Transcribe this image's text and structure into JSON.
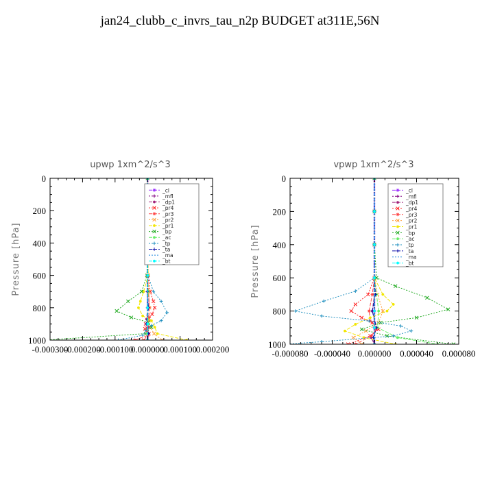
{
  "figure_title": "jan24_clubb_c_invrs_tau_n2p  BUDGET at311E,56N",
  "chart_data": [
    {
      "type": "line",
      "title": "upwp   1xm^2/s^3",
      "ylabel": "Pressure [hPa]",
      "xlabel": "",
      "xlim": [
        -0.0003,
        0.0002
      ],
      "ylim": [
        1000,
        0
      ],
      "y_reversed": true,
      "xtick_labels": [
        "-0.000300",
        "-0.000200",
        "-0.000100",
        "0.000000",
        "0.000100",
        "0.000200"
      ],
      "xtick_values": [
        -0.0003,
        -0.0002,
        -0.0001,
        0.0,
        0.0001,
        0.0002
      ],
      "ytick_labels": [
        "0",
        "200",
        "400",
        "600",
        "800",
        "1000"
      ],
      "ytick_values": [
        0,
        200,
        400,
        600,
        800,
        1000
      ],
      "legend_position": "top-right",
      "series": [
        {
          "name": "_cl",
          "color": "#9b30ff",
          "x": [
            0,
            0,
            0,
            0,
            0,
            0,
            0
          ],
          "y": [
            0,
            200,
            400,
            600,
            800,
            900,
            1000
          ]
        },
        {
          "name": "_mfl",
          "color": "#800080",
          "x": [
            0,
            0,
            0,
            0,
            0,
            0,
            0
          ],
          "y": [
            0,
            200,
            400,
            600,
            800,
            900,
            1000
          ]
        },
        {
          "name": "_dp1",
          "color": "#a0207a",
          "x": [
            0,
            0,
            0,
            0,
            0,
            0,
            -3e-06,
            4e-06,
            -2e-06,
            0
          ],
          "y": [
            0,
            200,
            400,
            600,
            700,
            800,
            870,
            920,
            960,
            1000
          ]
        },
        {
          "name": "_pr4",
          "color": "#ff2020",
          "x": [
            0,
            0,
            0,
            2e-06,
            8e-06,
            1.8e-05,
            2.2e-05,
            1.4e-05,
            4e-06,
            -6e-06,
            -8e-06,
            4e-06,
            -1.2e-05
          ],
          "y": [
            0,
            200,
            400,
            600,
            700,
            760,
            800,
            840,
            870,
            900,
            930,
            960,
            1000
          ]
        },
        {
          "name": "_pr3",
          "color": "#ff4444",
          "x": [
            0,
            0,
            0,
            0,
            3e-06,
            6e-06,
            4e-06,
            -2e-06,
            -4e-06,
            2e-06,
            -4e-05
          ],
          "y": [
            0,
            200,
            400,
            600,
            700,
            800,
            860,
            900,
            940,
            970,
            1000
          ]
        },
        {
          "name": "_pr2",
          "color": "#ffa040",
          "x": [
            0,
            0,
            0,
            0,
            4e-06,
            6e-06,
            4e-06,
            8e-06,
            2e-05,
            4.5e-05
          ],
          "y": [
            0,
            200,
            400,
            600,
            700,
            800,
            880,
            920,
            960,
            1000
          ]
        },
        {
          "name": "_pr1",
          "color": "#f2e600",
          "x": [
            0,
            0,
            0,
            2e-06,
            -1.2e-05,
            -2.2e-05,
            -2.8e-05,
            -1.5e-05,
            1.2e-05,
            2.2e-05,
            3e-05,
            0.00012
          ],
          "y": [
            0,
            200,
            400,
            600,
            700,
            760,
            800,
            850,
            880,
            920,
            960,
            1000
          ]
        },
        {
          "name": "_bp",
          "color": "#22aa22",
          "x": [
            0,
            0,
            0,
            -2e-06,
            -1.8e-05,
            -6e-05,
            -9.5e-05,
            -5e-05,
            2e-06,
            1.2e-05,
            -5e-06,
            -0.00032
          ],
          "y": [
            0,
            200,
            400,
            600,
            700,
            760,
            820,
            860,
            890,
            920,
            960,
            1000
          ]
        },
        {
          "name": "_ac",
          "color": "#66ee66",
          "x": [
            0,
            0,
            0,
            0,
            2e-06,
            0,
            2e-06,
            -1e-06,
            0
          ],
          "y": [
            0,
            200,
            400,
            600,
            700,
            800,
            900,
            960,
            1000
          ]
        },
        {
          "name": "_tp",
          "color": "#1f8fbf",
          "x": [
            0,
            0,
            0,
            1e-06,
            1.8e-05,
            4.2e-05,
            6e-05,
            4.2e-05,
            1.2e-05,
            -5e-06,
            -1.5e-05,
            -9e-05
          ],
          "y": [
            0,
            200,
            400,
            600,
            700,
            760,
            830,
            880,
            910,
            940,
            970,
            1000
          ]
        },
        {
          "name": "_ta",
          "color": "#1010aa",
          "x": [
            0,
            0,
            0,
            0,
            -1e-06,
            3e-06,
            -4e-06,
            3e-06,
            0
          ],
          "y": [
            0,
            200,
            400,
            600,
            700,
            800,
            900,
            960,
            1000
          ]
        },
        {
          "name": "_ma",
          "color": "#2288dd",
          "x": [
            0,
            0,
            0,
            0,
            0,
            0,
            0
          ],
          "y": [
            0,
            200,
            400,
            600,
            800,
            900,
            1000
          ]
        },
        {
          "name": "_bt",
          "color": "#00ffff",
          "x": [
            0,
            0,
            0,
            0,
            0,
            0,
            0
          ],
          "y": [
            0,
            200,
            400,
            600,
            800,
            900,
            1000
          ]
        }
      ]
    },
    {
      "type": "line",
      "title": "vpwp   1xm^2/s^3",
      "ylabel": "Pressure [hPa]",
      "xlabel": "",
      "xlim": [
        -8e-05,
        8e-05
      ],
      "ylim": [
        1000,
        0
      ],
      "y_reversed": true,
      "xtick_labels": [
        "-0.000080",
        "-0.000040",
        "0.000000",
        "0.000040",
        "0.000080"
      ],
      "xtick_values": [
        -8e-05,
        -4e-05,
        0.0,
        4e-05,
        8e-05
      ],
      "ytick_labels": [
        "0",
        "200",
        "400",
        "600",
        "800",
        "1000"
      ],
      "ytick_values": [
        0,
        200,
        400,
        600,
        800,
        1000
      ],
      "legend_position": "top-right",
      "series": [
        {
          "name": "_cl",
          "color": "#9b30ff",
          "x": [
            0,
            0,
            0,
            0,
            0,
            0,
            0
          ],
          "y": [
            0,
            200,
            400,
            600,
            800,
            900,
            1000
          ]
        },
        {
          "name": "_mfl",
          "color": "#800080",
          "x": [
            0,
            0,
            0,
            0,
            0,
            0,
            0
          ],
          "y": [
            0,
            200,
            400,
            600,
            800,
            900,
            1000
          ]
        },
        {
          "name": "_dp1",
          "color": "#a0207a",
          "x": [
            0,
            0,
            0,
            0,
            0,
            -2e-06,
            2e-06,
            -3e-06,
            0
          ],
          "y": [
            0,
            200,
            400,
            600,
            700,
            800,
            900,
            960,
            1000
          ]
        },
        {
          "name": "_pr4",
          "color": "#ff2020",
          "x": [
            0,
            0,
            0,
            0,
            -6e-06,
            -1.8e-05,
            -2.2e-05,
            -1.2e-05,
            -2e-06,
            4e-06,
            -4e-06,
            -2.5e-05
          ],
          "y": [
            0,
            200,
            400,
            600,
            700,
            760,
            800,
            840,
            870,
            910,
            950,
            1000
          ]
        },
        {
          "name": "_pr3",
          "color": "#ff4444",
          "x": [
            0,
            0,
            0,
            0,
            -2e-06,
            -5e-06,
            -4e-06,
            2e-06,
            -3e-06,
            -1.8e-05
          ],
          "y": [
            0,
            200,
            400,
            600,
            700,
            800,
            860,
            910,
            950,
            1000
          ]
        },
        {
          "name": "_pr2",
          "color": "#ffa040",
          "x": [
            0,
            0,
            0,
            0,
            3e-06,
            8e-06,
            4e-06,
            -8e-06,
            -2e-05,
            -1.2e-05
          ],
          "y": [
            0,
            200,
            400,
            600,
            700,
            800,
            870,
            920,
            960,
            1000
          ]
        },
        {
          "name": "_pr1",
          "color": "#f2e600",
          "x": [
            0,
            0,
            0,
            0,
            8e-06,
            1.8e-05,
            1.2e-05,
            -4e-06,
            -1.8e-05,
            -2.8e-05,
            -1e-05,
            2e-05
          ],
          "y": [
            0,
            200,
            400,
            600,
            700,
            760,
            800,
            840,
            880,
            920,
            960,
            1000
          ]
        },
        {
          "name": "_bp",
          "color": "#22aa22",
          "x": [
            0,
            0,
            0,
            2e-06,
            2e-05,
            5e-05,
            7e-05,
            4e-05,
            6e-06,
            -1.2e-05,
            1.2e-05,
            7.5e-05
          ],
          "y": [
            0,
            200,
            400,
            600,
            650,
            720,
            790,
            840,
            870,
            910,
            950,
            1000
          ]
        },
        {
          "name": "_ac",
          "color": "#66ee66",
          "x": [
            0,
            0,
            0,
            0,
            2e-06,
            4e-06,
            3e-06,
            2.2e-05,
            6e-05
          ],
          "y": [
            0,
            200,
            400,
            600,
            700,
            800,
            900,
            960,
            1000
          ]
        },
        {
          "name": "_tp",
          "color": "#1f8fbf",
          "x": [
            0,
            0,
            0,
            0,
            -1.8e-05,
            -4.8e-05,
            -7.5e-05,
            -5e-05,
            -5e-06,
            2.5e-05,
            3.5e-05,
            1.8e-05,
            -5e-05,
            -8.5e-05
          ],
          "y": [
            0,
            200,
            400,
            600,
            680,
            740,
            800,
            830,
            860,
            890,
            920,
            950,
            985,
            1000
          ]
        },
        {
          "name": "_ta",
          "color": "#1010aa",
          "x": [
            0,
            0,
            0,
            0,
            1e-06,
            -2e-06,
            2e-06,
            -1e-06,
            0
          ],
          "y": [
            0,
            200,
            400,
            600,
            700,
            800,
            900,
            960,
            1000
          ]
        },
        {
          "name": "_ma",
          "color": "#2288dd",
          "x": [
            0,
            0,
            0,
            0,
            0,
            0,
            0
          ],
          "y": [
            0,
            200,
            400,
            600,
            800,
            900,
            1000
          ]
        },
        {
          "name": "_bt",
          "color": "#00ffff",
          "x": [
            0,
            0,
            0,
            0,
            0,
            0,
            0
          ],
          "y": [
            0,
            200,
            400,
            600,
            800,
            900,
            1000
          ]
        }
      ]
    }
  ]
}
